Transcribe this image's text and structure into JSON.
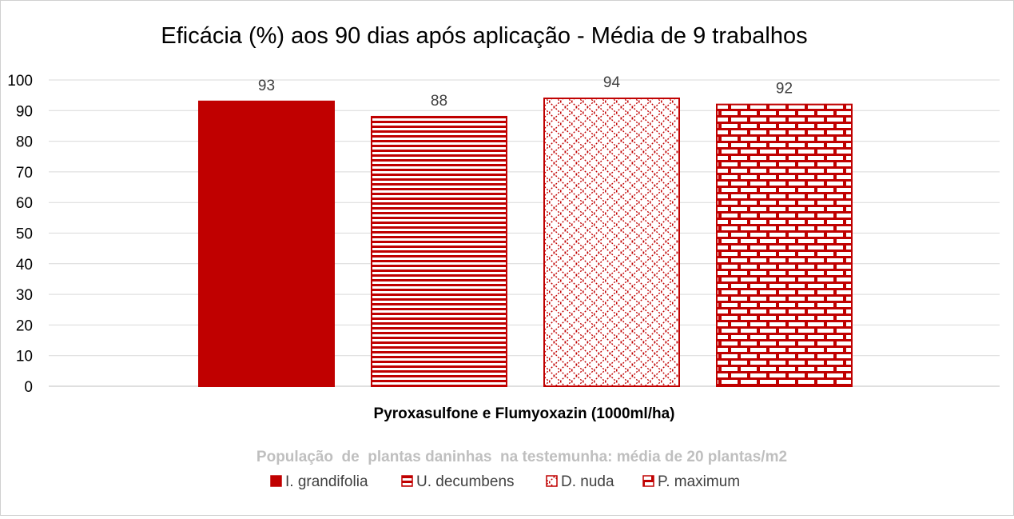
{
  "chart_data": {
    "type": "bar",
    "title": "Eficácia (%) aos 90 dias após aplicação - Média de 9 trabalhos",
    "xlabel": "Pyroxasulfone e Flumyoxazin (1000ml/ha)",
    "subtitle": "População  de  plantas daninhas  na testemunha: média de 20 plantas/m2",
    "ylabel": "",
    "ylim": [
      0,
      100
    ],
    "yticks": [
      "0",
      "10",
      "20",
      "30",
      "40",
      "50",
      "60",
      "70",
      "80",
      "90",
      "100"
    ],
    "categories": [
      "Pyroxasulfone e Flumyoxazin (1000ml/ha)"
    ],
    "grid": true,
    "legend_position": "bottom",
    "series": [
      {
        "name": "I. grandifolia",
        "values": [
          93
        ],
        "label": "93",
        "pattern": "solid",
        "color": "#C00000"
      },
      {
        "name": "U. decumbens",
        "values": [
          88
        ],
        "label": "88",
        "pattern": "horizontal-stripes",
        "color": "#C00000"
      },
      {
        "name": "D. nuda",
        "values": [
          94
        ],
        "label": "94",
        "pattern": "diagonal-dots",
        "color": "#C00000"
      },
      {
        "name": "P. maximum",
        "values": [
          92
        ],
        "label": "92",
        "pattern": "brick",
        "color": "#C00000"
      }
    ]
  }
}
